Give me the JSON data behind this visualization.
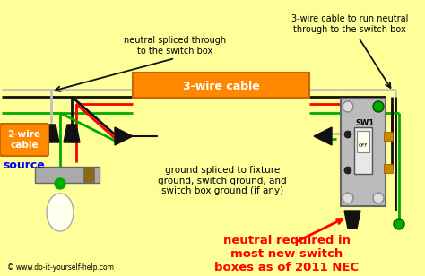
{
  "bg_color": "#FFFF99",
  "wire_colors": {
    "white": "#C0C0C0",
    "black": "#111111",
    "red": "#FF0000",
    "green": "#00AA00",
    "orange_cable": "#FF8800"
  },
  "label_2wire": "2-wire\ncable",
  "label_source": "source",
  "label_3wire": "3-wire cable",
  "label_neutral_top": "neutral spliced through\nto the switch box",
  "label_3wire_top": "3-wire cable to run neutral\nthrough to the switch box",
  "label_ground": "ground spliced to fixture\nground, switch ground, and\nswitch box ground (if any)",
  "label_neutral_bottom": "neutral required in\nmost new switch\nboxes as of 2011 NEC",
  "label_sw1": "SW1",
  "label_off": "OFF",
  "label_copyright": "© www.do-it-yourself-help.com",
  "figsize": [
    4.74,
    3.08
  ],
  "dpi": 100
}
